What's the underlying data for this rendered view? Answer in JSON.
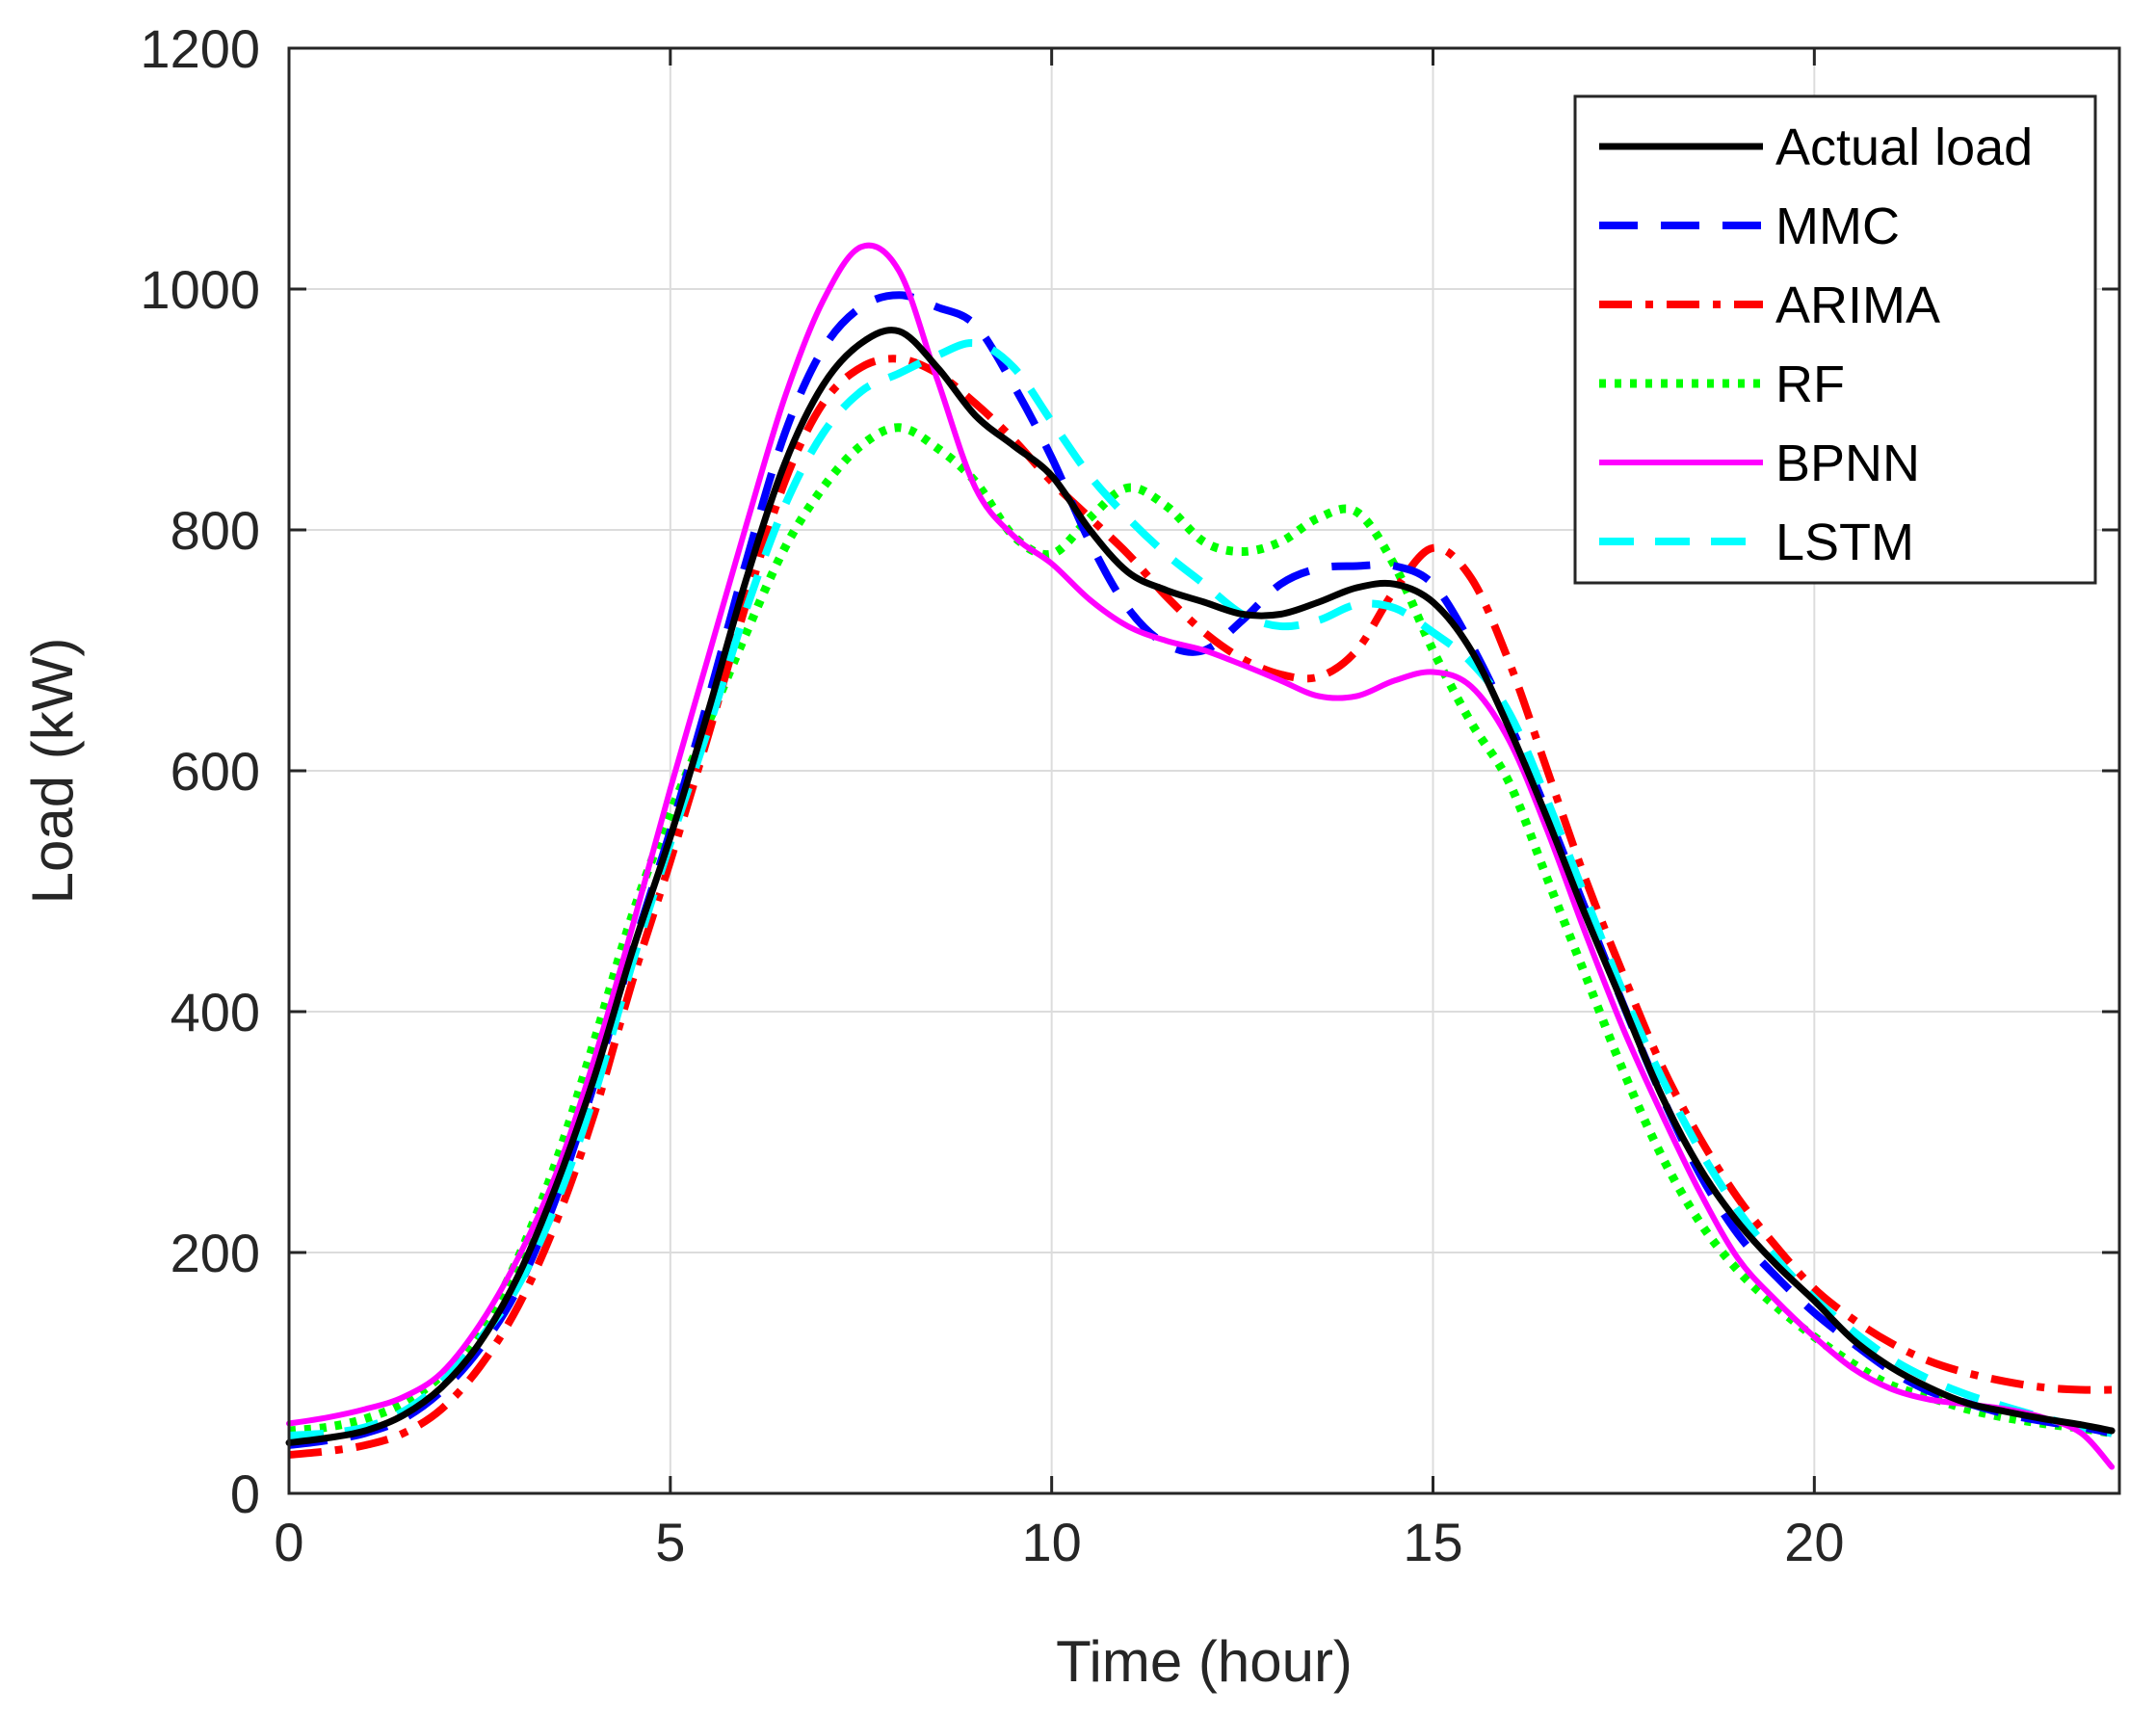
{
  "chart_data": {
    "type": "line",
    "title": "",
    "xlabel": "Time (hour)",
    "ylabel": "Load (kW)",
    "xlim": [
      0,
      24
    ],
    "ylim": [
      0,
      1200
    ],
    "xticks": [
      0,
      5,
      10,
      15,
      20
    ],
    "yticks": [
      0,
      200,
      400,
      600,
      800,
      1000,
      1200
    ],
    "grid": true,
    "legend_position": "top-right",
    "x": [
      0,
      0.5,
      1,
      1.5,
      2,
      2.5,
      3,
      3.5,
      4,
      4.5,
      5,
      5.5,
      6,
      6.5,
      7,
      7.5,
      8,
      8.5,
      9,
      9.5,
      10,
      10.5,
      11,
      11.5,
      12,
      12.5,
      13,
      13.5,
      14,
      14.5,
      15,
      15.5,
      16,
      16.5,
      17,
      17.5,
      18,
      18.5,
      19,
      19.5,
      20,
      20.5,
      21,
      21.5,
      22,
      22.5,
      23,
      23.5,
      23.9
    ],
    "series": [
      {
        "name": "Actual load",
        "color": "#000000",
        "dash": "solid",
        "width": 7,
        "values": [
          42,
          46,
          52,
          65,
          88,
          125,
          180,
          255,
          345,
          450,
          545,
          650,
          760,
          855,
          920,
          955,
          965,
          935,
          895,
          870,
          845,
          800,
          765,
          750,
          740,
          730,
          730,
          740,
          752,
          755,
          740,
          700,
          635,
          560,
          480,
          405,
          330,
          270,
          225,
          190,
          160,
          128,
          105,
          88,
          75,
          68,
          62,
          57,
          52
        ]
      },
      {
        "name": "MMC",
        "color": "#0000ff",
        "dash": "40 24",
        "width": 8,
        "values": [
          40,
          44,
          50,
          62,
          85,
          120,
          170,
          245,
          340,
          450,
          550,
          660,
          775,
          880,
          950,
          985,
          995,
          985,
          970,
          920,
          860,
          790,
          735,
          705,
          700,
          725,
          755,
          768,
          770,
          770,
          755,
          705,
          640,
          565,
          485,
          405,
          330,
          265,
          215,
          180,
          150,
          125,
          102,
          85,
          75,
          66,
          60,
          55,
          50
        ]
      },
      {
        "name": "ARIMA",
        "color": "#ff0000",
        "dash": "34 14 8 14",
        "width": 8,
        "values": [
          32,
          35,
          40,
          50,
          70,
          105,
          155,
          225,
          315,
          425,
          525,
          630,
          740,
          840,
          905,
          935,
          942,
          930,
          905,
          875,
          840,
          810,
          780,
          745,
          715,
          693,
          680,
          678,
          700,
          750,
          785,
          760,
          690,
          600,
          510,
          430,
          355,
          295,
          245,
          205,
          170,
          145,
          125,
          110,
          100,
          93,
          88,
          86,
          86
        ]
      },
      {
        "name": "RF",
        "color": "#00ff00",
        "dash": "7 9",
        "width": 9,
        "values": [
          52,
          55,
          62,
          75,
          98,
          135,
          195,
          275,
          375,
          480,
          565,
          640,
          715,
          785,
          835,
          870,
          885,
          868,
          840,
          795,
          780,
          810,
          835,
          820,
          790,
          782,
          790,
          810,
          815,
          770,
          700,
          640,
          590,
          510,
          430,
          350,
          280,
          225,
          185,
          155,
          130,
          108,
          90,
          80,
          70,
          63,
          58,
          54,
          50
        ]
      },
      {
        "name": "BPNN",
        "color": "#ff00ff",
        "dash": "solid",
        "width": 6,
        "values": [
          58,
          63,
          70,
          80,
          100,
          140,
          195,
          265,
          360,
          470,
          585,
          695,
          805,
          910,
          990,
          1035,
          1015,
          925,
          835,
          795,
          772,
          742,
          720,
          708,
          700,
          688,
          675,
          662,
          662,
          675,
          682,
          670,
          625,
          550,
          465,
          385,
          315,
          250,
          195,
          160,
          130,
          104,
          87,
          78,
          74,
          70,
          63,
          50,
          22
        ]
      },
      {
        "name": "LSTM",
        "color": "#00ffff",
        "dash": "36 22",
        "width": 8,
        "values": [
          48,
          50,
          55,
          68,
          92,
          128,
          172,
          240,
          330,
          440,
          540,
          635,
          735,
          820,
          880,
          915,
          930,
          945,
          955,
          935,
          890,
          845,
          810,
          780,
          755,
          730,
          720,
          725,
          738,
          735,
          715,
          690,
          648,
          575,
          495,
          415,
          345,
          285,
          235,
          195,
          162,
          135,
          112,
          95,
          82,
          72,
          63,
          55,
          50
        ]
      }
    ]
  }
}
